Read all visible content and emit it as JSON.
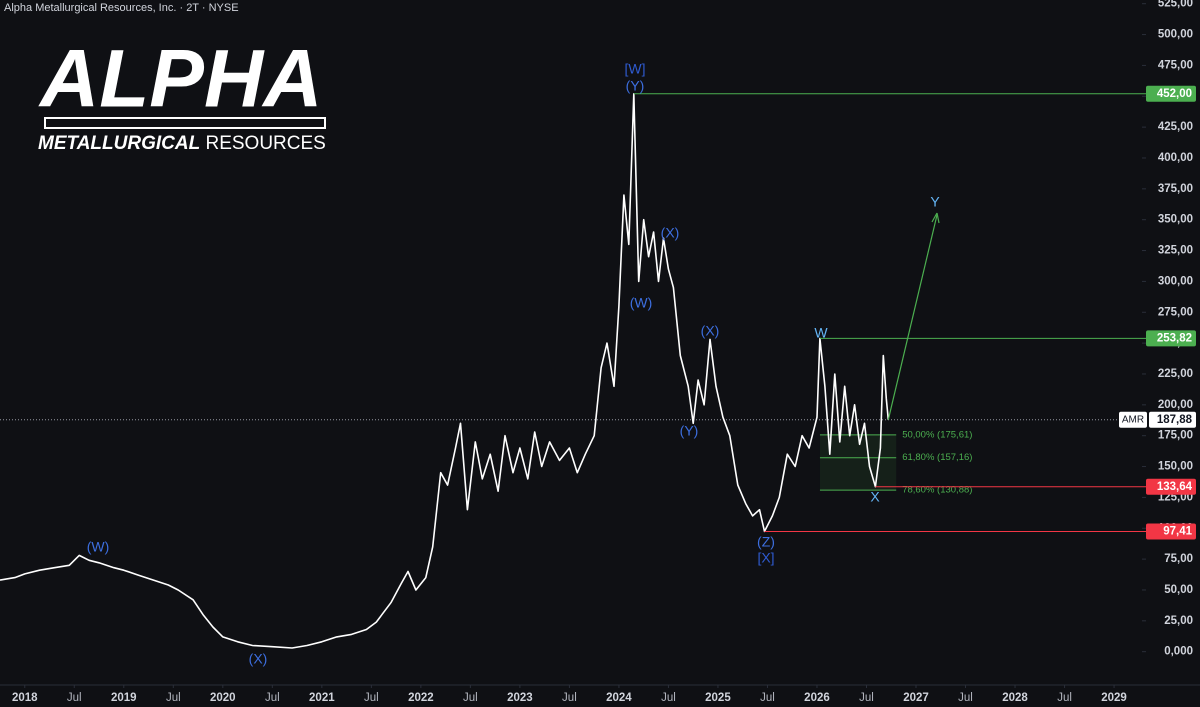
{
  "header": {
    "title": "Alpha Metallurgical Resources, Inc. · 2T · NYSE"
  },
  "logo": {
    "name": "ALPHA",
    "tagline_bold": "METALLURGICAL",
    "tagline": "RESOURCES"
  },
  "chart_data": {
    "type": "line",
    "x": [
      2017.75,
      2017.9,
      2018.0,
      2018.15,
      2018.3,
      2018.45,
      2018.55,
      2018.65,
      2018.75,
      2018.9,
      2019.0,
      2019.15,
      2019.3,
      2019.45,
      2019.55,
      2019.7,
      2019.8,
      2019.9,
      2020.0,
      2020.15,
      2020.3,
      2020.5,
      2020.7,
      2020.85,
      2021.0,
      2021.15,
      2021.3,
      2021.45,
      2021.55,
      2021.7,
      2021.8,
      2021.87,
      2021.95,
      2022.05,
      2022.12,
      2022.2,
      2022.27,
      2022.35,
      2022.4,
      2022.47,
      2022.55,
      2022.62,
      2022.7,
      2022.78,
      2022.85,
      2022.93,
      2023.0,
      2023.08,
      2023.15,
      2023.22,
      2023.3,
      2023.4,
      2023.5,
      2023.58,
      2023.66,
      2023.75,
      2023.82,
      2023.88,
      2023.95,
      2024.0,
      2024.05,
      2024.1,
      2024.15,
      2024.2,
      2024.25,
      2024.3,
      2024.35,
      2024.4,
      2024.45,
      2024.5,
      2024.55,
      2024.62,
      2024.7,
      2024.75,
      2024.8,
      2024.86,
      2024.92,
      2024.98,
      2025.05,
      2025.12,
      2025.2,
      2025.28,
      2025.35,
      2025.42,
      2025.47,
      2025.55,
      2025.62,
      2025.7,
      2025.78,
      2025.85,
      2025.92,
      2026.0,
      2026.03,
      2026.08,
      2026.13,
      2026.18,
      2026.23,
      2026.28,
      2026.33,
      2026.38,
      2026.43,
      2026.48,
      2026.53,
      2026.59,
      2026.64,
      2026.67,
      2026.7,
      2026.72
    ],
    "series": [
      {
        "name": "AMR",
        "color": "#ffffff",
        "values": [
          58,
          60,
          63,
          66,
          68,
          70,
          78,
          74,
          72,
          68,
          66,
          62,
          58,
          54,
          50,
          42,
          30,
          20,
          12,
          8,
          5,
          4,
          3,
          5,
          8,
          12,
          14,
          18,
          24,
          40,
          55,
          65,
          50,
          60,
          85,
          145,
          135,
          165,
          185,
          115,
          170,
          140,
          160,
          130,
          175,
          145,
          165,
          140,
          178,
          150,
          170,
          155,
          165,
          145,
          160,
          175,
          230,
          250,
          215,
          280,
          370,
          330,
          452,
          300,
          350,
          320,
          340,
          300,
          335,
          310,
          295,
          240,
          215,
          185,
          220,
          200,
          253,
          215,
          190,
          175,
          135,
          120,
          110,
          115,
          97.41,
          110,
          125,
          160,
          150,
          175,
          165,
          190,
          253.82,
          215,
          160,
          225,
          170,
          215,
          175,
          200,
          168,
          185,
          150,
          133.64,
          165,
          240,
          205,
          187.88
        ]
      }
    ],
    "xlim": [
      2017.75,
      2029.06
    ],
    "ylim": [
      -27,
      528
    ],
    "xticks": [
      {
        "value": 2018,
        "label": "2018"
      },
      {
        "value": 2018.5,
        "label": "Jul"
      },
      {
        "value": 2019,
        "label": "2019"
      },
      {
        "value": 2019.5,
        "label": "Jul"
      },
      {
        "value": 2020,
        "label": "2020"
      },
      {
        "value": 2020.5,
        "label": "Jul"
      },
      {
        "value": 2021,
        "label": "2021"
      },
      {
        "value": 2021.5,
        "label": "Jul"
      },
      {
        "value": 2022,
        "label": "2022"
      },
      {
        "value": 2022.5,
        "label": "Jul"
      },
      {
        "value": 2023,
        "label": "2023"
      },
      {
        "value": 2023.5,
        "label": "Jul"
      },
      {
        "value": 2024,
        "label": "2024"
      },
      {
        "value": 2024.5,
        "label": "Jul"
      },
      {
        "value": 2025,
        "label": "2025"
      },
      {
        "value": 2025.5,
        "label": "Jul"
      },
      {
        "value": 2026,
        "label": "2026"
      },
      {
        "value": 2026.5,
        "label": "Jul"
      },
      {
        "value": 2027,
        "label": "2027"
      },
      {
        "value": 2027.5,
        "label": "Jul"
      },
      {
        "value": 2028,
        "label": "2028"
      },
      {
        "value": 2028.5,
        "label": "Jul"
      },
      {
        "value": 2029,
        "label": "2029"
      }
    ],
    "yticks": [
      {
        "value": 0,
        "label": "0,000"
      },
      {
        "value": 25,
        "label": "25,00"
      },
      {
        "value": 50,
        "label": "50,00"
      },
      {
        "value": 75,
        "label": "75,00"
      },
      {
        "value": 100,
        "label": "100,00"
      },
      {
        "value": 125,
        "label": "125,00"
      },
      {
        "value": 150,
        "label": "150,00"
      },
      {
        "value": 175,
        "label": "175,00"
      },
      {
        "value": 200,
        "label": "200,00"
      },
      {
        "value": 225,
        "label": "225,00"
      },
      {
        "value": 250,
        "label": "250,00"
      },
      {
        "value": 275,
        "label": "275,00"
      },
      {
        "value": 300,
        "label": "300,00"
      },
      {
        "value": 325,
        "label": "325,00"
      },
      {
        "value": 350,
        "label": "350,00"
      },
      {
        "value": 375,
        "label": "375,00"
      },
      {
        "value": 400,
        "label": "400,00"
      },
      {
        "value": 425,
        "label": "425,00"
      },
      {
        "value": 450,
        "label": "450,00"
      },
      {
        "value": 475,
        "label": "475,00"
      },
      {
        "value": 500,
        "label": "500,00"
      },
      {
        "value": 525,
        "label": "525,00"
      }
    ],
    "price_levels": [
      {
        "value": 452,
        "label": "452,00",
        "color": "#4caf50"
      },
      {
        "value": 253.82,
        "label": "253,82",
        "color": "#4caf50"
      },
      {
        "value": 133.64,
        "label": "133,64",
        "color": "#f23645"
      },
      {
        "value": 97.41,
        "label": "97,41",
        "color": "#f23645"
      }
    ],
    "current_price": {
      "value": 187.88,
      "label": "187,88"
    },
    "fib_levels": [
      {
        "value": 175.61,
        "label": "50,00% (175,61)"
      },
      {
        "value": 157.16,
        "label": "61,80% (157,16)"
      },
      {
        "value": 130.88,
        "label": "78,60% (130,88)"
      }
    ],
    "annotations": [
      "(W)",
      "(X)",
      "[W]",
      "(Y)",
      "(W)",
      "(X)",
      "(X)",
      "(Y)",
      "(Z)",
      "[X]",
      "W",
      "X",
      "Y"
    ]
  }
}
